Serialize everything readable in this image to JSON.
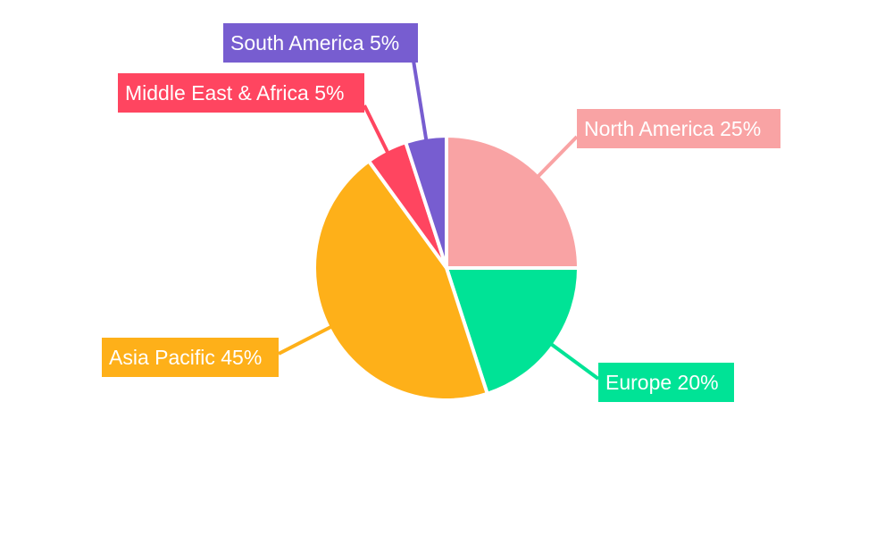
{
  "chart_data": {
    "type": "pie",
    "title": "",
    "start_angle": "top, clockwise",
    "legend": "none",
    "slices": [
      {
        "label": "North America",
        "value": 25,
        "display": "North America 25%",
        "color": "#F9A3A4"
      },
      {
        "label": "Europe",
        "value": 20,
        "display": "Europe 20%",
        "color": "#00E396"
      },
      {
        "label": "Asia Pacific",
        "value": 45,
        "display": "Asia Pacific 45%",
        "color": "#FEB019"
      },
      {
        "label": "Middle East & Africa",
        "value": 5,
        "display": "Middle East & Africa 5%",
        "color": "#FF4560"
      },
      {
        "label": "South America",
        "value": 5,
        "display": "South America 5%",
        "color": "#775DD0"
      }
    ]
  }
}
